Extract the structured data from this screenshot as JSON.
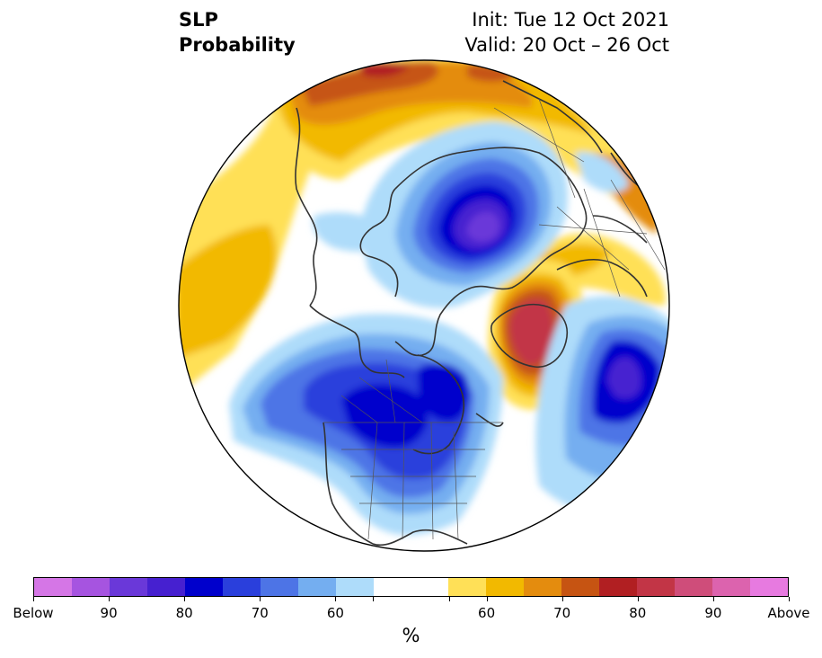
{
  "title": {
    "left_line1": "SLP",
    "left_line2": "Probability",
    "init": "Init: Tue 12 Oct 2021",
    "valid": "Valid: 20 Oct – 26 Oct"
  },
  "colorbar": {
    "unit": "%",
    "below_colors": [
      "#d576e6",
      "#a654e0",
      "#6a38d9",
      "#4620d0",
      "#0000cc",
      "#2a3fdc",
      "#4d74e6",
      "#74aef0",
      "#aedcfa"
    ],
    "neutral_color": "#ffffff",
    "above_colors": [
      "#ffe057",
      "#f2b900",
      "#e48c0e",
      "#c65412",
      "#b11f22",
      "#c23546",
      "#cf4d7a",
      "#dc63ae",
      "#e77ae0"
    ],
    "tick_labels": [
      "Below",
      "90",
      "80",
      "70",
      "60",
      "60",
      "70",
      "80",
      "90",
      "Above"
    ]
  },
  "map": {
    "projection": "north-polar-stereographic",
    "features": [
      "coastlines",
      "country-borders",
      "us-state-borders",
      "canada-province-borders"
    ],
    "anomalies": [
      {
        "label": "Below",
        "region": "Kara Sea / Arctic Russia",
        "peak_percent": 90
      },
      {
        "label": "Below",
        "region": "Alaska / Western Canada",
        "peak_percent": 80
      },
      {
        "label": "Below",
        "region": "Hudson Bay / Eastern Canada",
        "peak_percent": 80
      },
      {
        "label": "Below",
        "region": "North Atlantic (west of Iberia)",
        "peak_percent": 80
      },
      {
        "label": "Above",
        "region": "Greenland Sea / Iceland",
        "peak_percent": 80
      },
      {
        "label": "Above",
        "region": "Northern Scandinavia",
        "peak_percent": 70
      },
      {
        "label": "Above",
        "region": "Eastern Siberia",
        "peak_percent": 80
      },
      {
        "label": "Above",
        "region": "North Pacific",
        "peak_percent": 65
      }
    ]
  }
}
